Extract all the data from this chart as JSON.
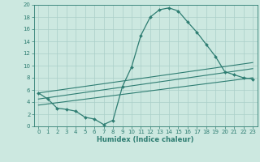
{
  "title": "",
  "xlabel": "Humidex (Indice chaleur)",
  "ylabel": "",
  "bg_color": "#cce8e0",
  "line_color": "#2e7d72",
  "grid_color": "#aacfc8",
  "xlim": [
    -0.5,
    23.5
  ],
  "ylim": [
    0,
    20
  ],
  "xticks": [
    0,
    1,
    2,
    3,
    4,
    5,
    6,
    7,
    8,
    9,
    10,
    11,
    12,
    13,
    14,
    15,
    16,
    17,
    18,
    19,
    20,
    21,
    22,
    23
  ],
  "yticks": [
    0,
    2,
    4,
    6,
    8,
    10,
    12,
    14,
    16,
    18,
    20
  ],
  "series1_x": [
    0,
    1,
    2,
    3,
    4,
    5,
    6,
    7,
    8,
    9,
    10,
    11,
    12,
    13,
    14,
    15,
    16,
    17,
    18,
    19,
    20,
    21,
    22,
    23
  ],
  "series1_y": [
    5.5,
    4.5,
    3.0,
    2.8,
    2.5,
    1.5,
    1.2,
    0.3,
    1.0,
    6.5,
    9.8,
    15.0,
    18.0,
    19.2,
    19.5,
    19.0,
    17.2,
    15.5,
    13.5,
    11.5,
    9.0,
    8.5,
    8.0,
    7.8
  ],
  "series2_x": [
    0,
    23
  ],
  "series2_y": [
    5.5,
    10.5
  ],
  "series3_x": [
    0,
    23
  ],
  "series3_y": [
    4.5,
    9.5
  ],
  "series4_x": [
    0,
    23
  ],
  "series4_y": [
    3.5,
    8.0
  ]
}
